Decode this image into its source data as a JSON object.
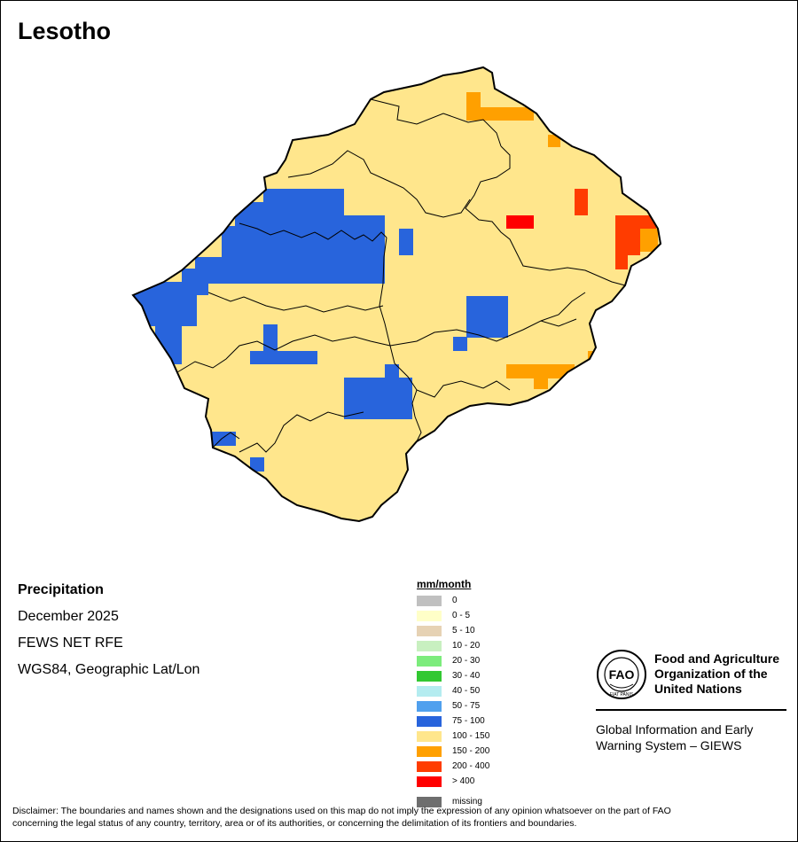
{
  "map": {
    "title": "Lesotho",
    "variable": "Precipitation",
    "period": "December 2025",
    "source": "FEWS NET RFE",
    "projection": "WGS84, Geographic Lat/Lon"
  },
  "legend": {
    "title": "mm/month",
    "items": [
      {
        "label": "0",
        "color": "#c0c0c0"
      },
      {
        "label": "0 - 5",
        "color": "#ffffc8"
      },
      {
        "label": "5 - 10",
        "color": "#e6d2b4"
      },
      {
        "label": "10 - 20",
        "color": "#c8f0c0"
      },
      {
        "label": "20 - 30",
        "color": "#7cec7c"
      },
      {
        "label": "30 - 40",
        "color": "#32c832"
      },
      {
        "label": "40 - 50",
        "color": "#b4ecf0"
      },
      {
        "label": "50 - 75",
        "color": "#50a0ee"
      },
      {
        "label": "75 - 100",
        "color": "#2864dc"
      },
      {
        "label": "100 - 150",
        "color": "#ffe68c"
      },
      {
        "label": "150 - 200",
        "color": "#ffa000"
      },
      {
        "label": "200 - 400",
        "color": "#ff3c00"
      },
      {
        "label": "> 400",
        "color": "#ff0000"
      }
    ],
    "missing": {
      "label": "missing",
      "color": "#6e6e6e"
    }
  },
  "org": {
    "name_line1": "Food and Agriculture",
    "name_line2": "Organization of the",
    "name_line3": "United Nations",
    "giews_line1": "Global Information and Early",
    "giews_line2": "Warning System – GIEWS",
    "emblem_text": "FAO",
    "motto": "FIAT PANIS"
  },
  "disclaimer": {
    "line1": "Disclaimer: The boundaries and names shown and the designations used on this map do not imply the expression of any opinion whatsoever on the part of FAO",
    "line2": "concerning the legal status of any country, territory, area or of its authorities, or concerning the delimitation of its frontiers and boundaries."
  }
}
